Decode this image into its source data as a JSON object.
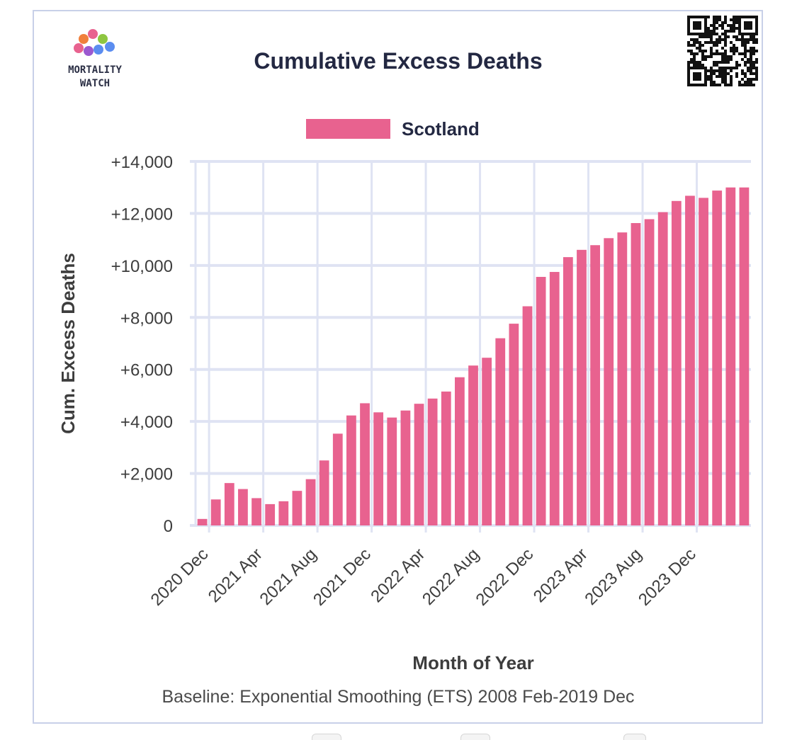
{
  "logo": {
    "line1": "MORTALITY",
    "line2": "WATCH"
  },
  "chart_data": {
    "type": "bar",
    "title": "Cumulative Excess Deaths",
    "xlabel": "Month of Year",
    "ylabel": "Cum. Excess Deaths",
    "footnote": "Baseline: Exponential Smoothing (ETS) 2008 Feb-2019 Dec",
    "ylim": [
      0,
      14000
    ],
    "yticks": [
      0,
      2000,
      4000,
      6000,
      8000,
      10000,
      12000,
      14000
    ],
    "ytick_labels": [
      "0",
      "+2,000",
      "+4,000",
      "+6,000",
      "+8,000",
      "+10,000",
      "+12,000",
      "+14,000"
    ],
    "xtick_labels": [
      "2020 Dec",
      "2021 Apr",
      "2021 Aug",
      "2021 Dec",
      "2022 Apr",
      "2022 Aug",
      "2022 Dec",
      "2023 Apr",
      "2023 Aug",
      "2023 Dec"
    ],
    "categories": [
      "2020 Dec",
      "2021 Jan",
      "2021 Feb",
      "2021 Mar",
      "2021 Apr",
      "2021 May",
      "2021 Jun",
      "2021 Jul",
      "2021 Aug",
      "2021 Sep",
      "2021 Oct",
      "2021 Nov",
      "2021 Dec",
      "2022 Jan",
      "2022 Feb",
      "2022 Mar",
      "2022 Apr",
      "2022 May",
      "2022 Jun",
      "2022 Jul",
      "2022 Aug",
      "2022 Sep",
      "2022 Oct",
      "2022 Nov",
      "2022 Dec",
      "2023 Jan",
      "2023 Feb",
      "2023 Mar",
      "2023 Apr",
      "2023 May",
      "2023 Jun",
      "2023 Jul",
      "2023 Aug",
      "2023 Sep",
      "2023 Oct",
      "2023 Nov",
      "2023 Dec",
      "2024 Jan",
      "2024 Feb",
      "2024 Mar",
      "2024 Apr"
    ],
    "series": [
      {
        "name": "Scotland",
        "color": "#e8628f",
        "values": [
          250,
          1000,
          1630,
          1400,
          1050,
          820,
          930,
          1330,
          1780,
          2500,
          3530,
          4230,
          4700,
          4350,
          4150,
          4420,
          4680,
          4880,
          5150,
          5700,
          6150,
          6450,
          7200,
          7760,
          8430,
          9560,
          9750,
          10320,
          10600,
          10780,
          11050,
          11270,
          11630,
          11780,
          12050,
          12480,
          12680,
          12600,
          12880,
          13000,
          13000
        ]
      }
    ],
    "legend_position": "top",
    "grid": true
  }
}
